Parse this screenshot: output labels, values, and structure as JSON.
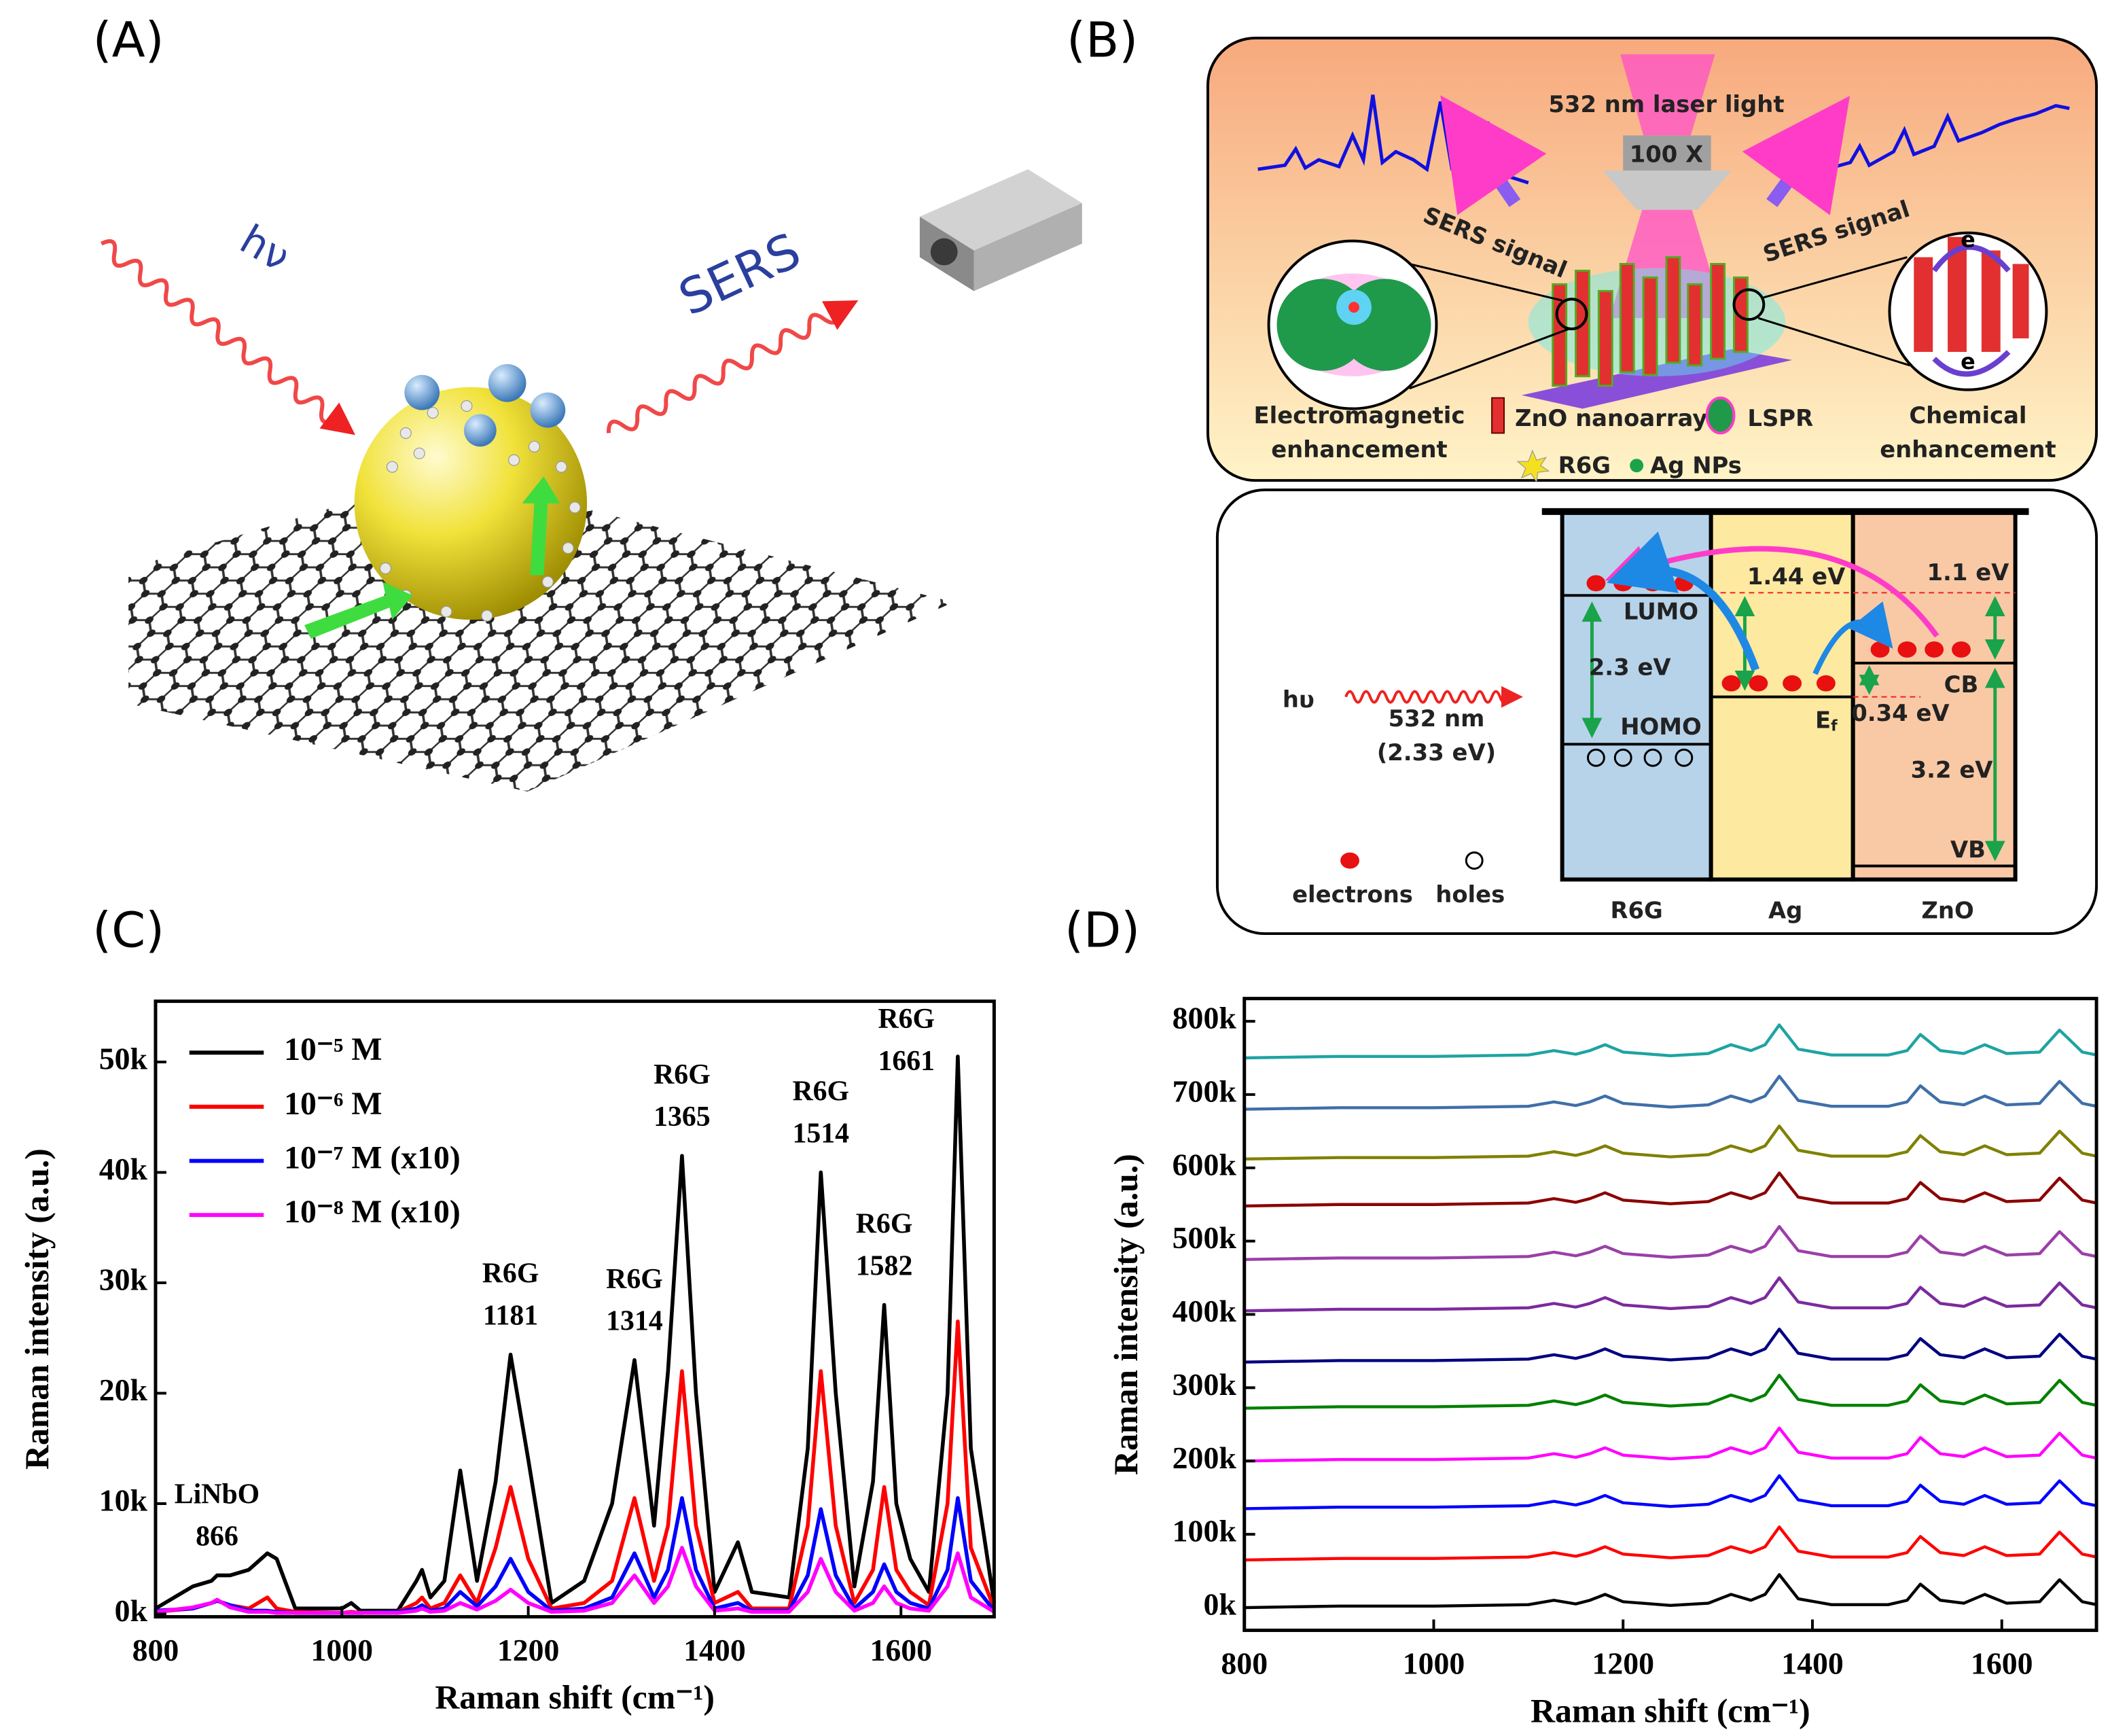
{
  "diagram_a": {
    "panel_label": "(A)",
    "photon": "hν",
    "sers": "SERS"
  },
  "diagram_b": {
    "panel_label": "(B)",
    "laser": "532 nm laser light",
    "objective": "100 X",
    "sers_left": "SERS signal",
    "sers_right": "SERS signal",
    "em_1": "Electromagnetic",
    "em_2": "enhancement",
    "zno_nanoarray": "ZnO nanoarray",
    "lspr": "LSPR",
    "chem_1": "Chemical",
    "chem_2": "enhancement",
    "r6g": "R6G",
    "ag_nps": "Ag NPs",
    "electron_top": "e",
    "electron_bottom": "e",
    "photon": "hυ",
    "wavelength": "532 nm",
    "photon_energy": "(2.33 eV)",
    "lumo": "LUMO",
    "homo": "HOMO",
    "gap_r6g": "2.3 eV",
    "gap_ag": "1.44 eV",
    "fermi": {
      "main": "E",
      "sub": "f"
    },
    "gap_zno_cb": "1.1 eV",
    "cb": "CB",
    "gap_ef_cb": "0.34 eV",
    "gap_zno": "3.2 eV",
    "vb": "VB",
    "electrons": "electrons",
    "holes": "holes",
    "col_r6g": "R6G",
    "col_ag": "Ag",
    "col_zno": "ZnO"
  },
  "chart_data": [
    {
      "type": "line",
      "panel_label": "(C)",
      "x_label": "Raman shift (cm⁻¹)",
      "y_label": "Raman intensity (a.u.)",
      "xlim": [
        800,
        1700
      ],
      "ylim": [
        -250,
        55500
      ],
      "xticks": [
        800,
        1000,
        1200,
        1400,
        1600
      ],
      "yticks": [
        {
          "value": 0,
          "label": "0k"
        },
        {
          "value": 10000,
          "label": "10k"
        },
        {
          "value": 20000,
          "label": "20k"
        },
        {
          "value": 30000,
          "label": "30k"
        },
        {
          "value": 40000,
          "label": "40k"
        },
        {
          "value": 50000,
          "label": "50k"
        }
      ],
      "legend": "upper left",
      "x": [
        800,
        840,
        860,
        866,
        880,
        900,
        920,
        930,
        950,
        1000,
        1010,
        1020,
        1060,
        1080,
        1086,
        1095,
        1110,
        1127,
        1145,
        1165,
        1181,
        1200,
        1225,
        1260,
        1290,
        1314,
        1335,
        1350,
        1365,
        1380,
        1400,
        1425,
        1440,
        1480,
        1500,
        1514,
        1530,
        1550,
        1570,
        1582,
        1595,
        1610,
        1630,
        1650,
        1661,
        1675,
        1700
      ],
      "series": [
        {
          "name": "10⁻⁵ M",
          "color": "#000000",
          "values": [
            500,
            2500,
            3000,
            3500,
            3500,
            4000,
            5500,
            5000,
            500,
            500,
            1000,
            300,
            300,
            3000,
            4000,
            1500,
            3000,
            13000,
            3000,
            12000,
            23500,
            14000,
            1000,
            3000,
            10000,
            23000,
            8000,
            22000,
            41500,
            20000,
            2000,
            6500,
            2000,
            1500,
            15000,
            40000,
            20000,
            2500,
            12000,
            28000,
            10000,
            5000,
            2000,
            20000,
            50500,
            15000,
            1000
          ]
        },
        {
          "name": "10⁻⁶ M",
          "color": "#ff0000",
          "values": [
            200,
            500,
            1000,
            1200,
            800,
            500,
            1500,
            500,
            200,
            100,
            200,
            100,
            200,
            1000,
            1500,
            500,
            1000,
            3500,
            1000,
            6000,
            11500,
            5000,
            500,
            1000,
            3000,
            10500,
            3000,
            8000,
            22000,
            8000,
            1000,
            2000,
            500,
            500,
            8000,
            22000,
            8000,
            1000,
            4000,
            11500,
            4000,
            2000,
            800,
            10000,
            26500,
            6000,
            500
          ]
        },
        {
          "name": "10⁻⁷ M (x10)",
          "color": "#0000ff",
          "values": [
            300,
            500,
            1000,
            1200,
            800,
            300,
            300,
            200,
            100,
            100,
            100,
            100,
            200,
            500,
            800,
            300,
            500,
            2000,
            700,
            2500,
            5000,
            2000,
            300,
            500,
            1500,
            5500,
            1500,
            4000,
            10500,
            4000,
            500,
            1000,
            300,
            300,
            3500,
            9500,
            3500,
            500,
            2000,
            4500,
            2000,
            1000,
            500,
            4000,
            10500,
            3000,
            300
          ]
        },
        {
          "name": "10⁻⁸ M (x10)",
          "color": "#ff00ff",
          "values": [
            200,
            600,
            1000,
            1300,
            600,
            200,
            200,
            100,
            100,
            100,
            100,
            100,
            100,
            300,
            500,
            200,
            300,
            1000,
            400,
            1200,
            2200,
            1000,
            200,
            300,
            1000,
            3500,
            1000,
            2500,
            6000,
            2500,
            300,
            500,
            200,
            200,
            2000,
            5000,
            2000,
            300,
            1000,
            2500,
            1000,
            500,
            300,
            2500,
            5500,
            1500,
            200
          ]
        }
      ],
      "annotations": [
        {
          "label": "LiNbO",
          "position": 866
        },
        {
          "label": "R6G",
          "position": 1181
        },
        {
          "label": "R6G",
          "position": 1314
        },
        {
          "label": "R6G",
          "position": 1365
        },
        {
          "label": "R6G",
          "position": 1514
        },
        {
          "label": "R6G",
          "position": 1582
        },
        {
          "label": "R6G",
          "position": 1661
        }
      ]
    },
    {
      "type": "line",
      "panel_label": "(D)",
      "x_label": "Raman shift (cm⁻¹)",
      "y_label": "Raman intensity (a.u.)",
      "xlim": [
        800,
        1700
      ],
      "ylim": [
        -31000,
        831000
      ],
      "xticks": [
        800,
        1000,
        1200,
        1400,
        1600
      ],
      "yticks": [
        {
          "value": 0,
          "label": "0k"
        },
        {
          "value": 100000,
          "label": "100k"
        },
        {
          "value": 200000,
          "label": "200k"
        },
        {
          "value": 300000,
          "label": "300k"
        },
        {
          "value": 400000,
          "label": "400k"
        },
        {
          "value": 500000,
          "label": "500k"
        },
        {
          "value": 600000,
          "label": "600k"
        },
        {
          "value": 700000,
          "label": "700k"
        },
        {
          "value": 800000,
          "label": "800k"
        }
      ],
      "x": [
        800,
        900,
        1000,
        1100,
        1127,
        1150,
        1165,
        1181,
        1200,
        1250,
        1290,
        1314,
        1335,
        1350,
        1365,
        1385,
        1420,
        1480,
        1500,
        1514,
        1535,
        1560,
        1582,
        1605,
        1640,
        1661,
        1685,
        1700
      ],
      "series": [
        {
          "color": "#000000",
          "values": [
            0,
            2000,
            2000,
            4000,
            10000,
            5000,
            10000,
            18000,
            8000,
            3000,
            6000,
            18000,
            10000,
            18000,
            45000,
            12000,
            4000,
            4000,
            10000,
            32000,
            10000,
            6000,
            18000,
            6000,
            8000,
            38000,
            8000,
            4000
          ]
        },
        {
          "color": "#ff0000",
          "values": [
            65000,
            67000,
            67000,
            69000,
            75000,
            70000,
            75000,
            83000,
            73000,
            68000,
            71000,
            83000,
            75000,
            83000,
            110000,
            77000,
            69000,
            69000,
            75000,
            97000,
            75000,
            71000,
            83000,
            71000,
            73000,
            103000,
            73000,
            69000
          ]
        },
        {
          "color": "#0000ff",
          "values": [
            135000,
            137000,
            137000,
            139000,
            145000,
            140000,
            145000,
            153000,
            143000,
            138000,
            141000,
            153000,
            145000,
            153000,
            180000,
            147000,
            139000,
            139000,
            145000,
            167000,
            145000,
            141000,
            153000,
            141000,
            143000,
            173000,
            143000,
            139000
          ]
        },
        {
          "color": "#ff00ff",
          "values": [
            200000,
            202000,
            202000,
            204000,
            210000,
            205000,
            210000,
            218000,
            208000,
            203000,
            206000,
            218000,
            210000,
            218000,
            245000,
            212000,
            204000,
            204000,
            210000,
            232000,
            210000,
            206000,
            218000,
            206000,
            208000,
            238000,
            208000,
            204000
          ]
        },
        {
          "color": "#008000",
          "values": [
            272000,
            274000,
            274000,
            276000,
            282000,
            277000,
            282000,
            290000,
            280000,
            275000,
            278000,
            290000,
            282000,
            290000,
            317000,
            284000,
            276000,
            276000,
            282000,
            304000,
            282000,
            278000,
            290000,
            278000,
            280000,
            310000,
            280000,
            276000
          ]
        },
        {
          "color": "#000080",
          "values": [
            335000,
            337000,
            337000,
            339000,
            345000,
            340000,
            345000,
            353000,
            343000,
            338000,
            341000,
            353000,
            345000,
            353000,
            380000,
            347000,
            339000,
            339000,
            345000,
            367000,
            345000,
            341000,
            353000,
            341000,
            343000,
            373000,
            343000,
            339000
          ]
        },
        {
          "color": "#7b2a9e",
          "values": [
            405000,
            407000,
            407000,
            409000,
            415000,
            410000,
            415000,
            423000,
            413000,
            408000,
            411000,
            423000,
            415000,
            423000,
            450000,
            417000,
            409000,
            409000,
            415000,
            437000,
            415000,
            411000,
            423000,
            411000,
            413000,
            443000,
            413000,
            409000
          ]
        },
        {
          "color": "#9b3fa8",
          "values": [
            475000,
            477000,
            477000,
            479000,
            485000,
            480000,
            485000,
            493000,
            483000,
            478000,
            481000,
            493000,
            485000,
            493000,
            520000,
            487000,
            479000,
            479000,
            485000,
            507000,
            485000,
            481000,
            493000,
            481000,
            483000,
            513000,
            483000,
            479000
          ]
        },
        {
          "color": "#8b0000",
          "values": [
            548000,
            550000,
            550000,
            552000,
            558000,
            553000,
            558000,
            566000,
            556000,
            551000,
            554000,
            566000,
            558000,
            566000,
            593000,
            560000,
            552000,
            552000,
            558000,
            580000,
            558000,
            554000,
            566000,
            554000,
            556000,
            586000,
            556000,
            552000
          ]
        },
        {
          "color": "#808000",
          "values": [
            612000,
            614000,
            614000,
            616000,
            622000,
            617000,
            622000,
            630000,
            620000,
            615000,
            618000,
            630000,
            622000,
            630000,
            657000,
            624000,
            616000,
            616000,
            622000,
            644000,
            622000,
            618000,
            630000,
            618000,
            620000,
            650000,
            620000,
            616000
          ]
        },
        {
          "color": "#3f6fa8",
          "values": [
            680000,
            682000,
            682000,
            684000,
            690000,
            685000,
            690000,
            698000,
            688000,
            683000,
            686000,
            698000,
            690000,
            698000,
            725000,
            692000,
            684000,
            684000,
            690000,
            712000,
            690000,
            686000,
            698000,
            686000,
            688000,
            718000,
            688000,
            684000
          ]
        },
        {
          "color": "#1fa3a3",
          "values": [
            750000,
            752000,
            752000,
            754000,
            760000,
            755000,
            760000,
            768000,
            758000,
            753000,
            756000,
            768000,
            760000,
            768000,
            795000,
            762000,
            754000,
            754000,
            760000,
            782000,
            760000,
            756000,
            768000,
            756000,
            758000,
            788000,
            758000,
            754000
          ]
        }
      ]
    }
  ]
}
